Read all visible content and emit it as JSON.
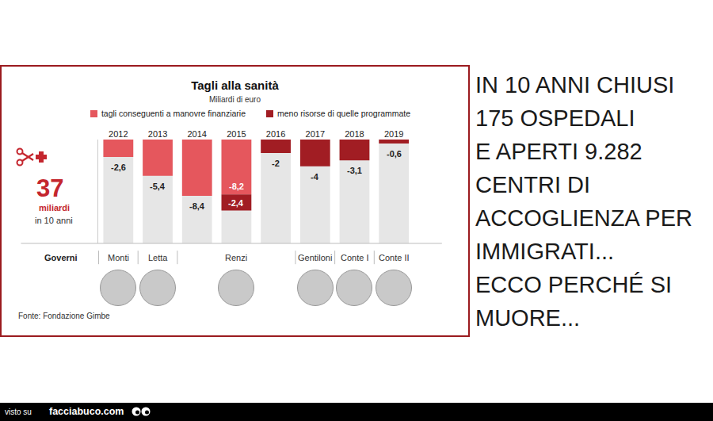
{
  "chart_data": {
    "type": "bar",
    "title": "Tagli alla sanità",
    "subtitle": "Miliardi di euro",
    "categories": [
      "2012",
      "2013",
      "2014",
      "2015",
      "2016",
      "2017",
      "2018",
      "2019"
    ],
    "series": [
      {
        "name": "tagli conseguenti a manovre finanziarie",
        "color": "#e5575d",
        "values": [
          -2.6,
          -5.4,
          -8.4,
          -8.2,
          null,
          null,
          null,
          null
        ],
        "value_labels": [
          "-2,6",
          "-5,4",
          "-8,4",
          "-8,2",
          null,
          null,
          null,
          null
        ]
      },
      {
        "name": "meno risorse di quelle programmate",
        "color": "#a11d23",
        "values": [
          null,
          null,
          null,
          -2.4,
          -2,
          -4,
          -3.1,
          -0.6
        ],
        "value_labels": [
          null,
          null,
          null,
          "-2,4",
          "-2",
          "-4",
          "-3,1",
          "-0,6"
        ]
      }
    ],
    "stacked": true,
    "data_labels": true,
    "legend": "top",
    "tick_labels": "x",
    "grid": true,
    "ylim": [
      -15.5,
      0
    ],
    "yticks": [
      0
    ],
    "governments_label": "Governi",
    "governments": [
      {
        "name": "Monti",
        "categories": [
          "2012"
        ]
      },
      {
        "name": "Letta",
        "categories": [
          "2013"
        ]
      },
      {
        "name": "Renzi",
        "categories": [
          "2014",
          "2015",
          "2016"
        ]
      },
      {
        "name": "Gentiloni",
        "categories": [
          "2017"
        ]
      },
      {
        "name": "Conte I",
        "categories": [
          "2018"
        ]
      },
      {
        "name": "Conte II",
        "categories": [
          "2019"
        ]
      }
    ],
    "total": {
      "value": 37,
      "unit": "miliardi",
      "note": "in 10 anni"
    },
    "source": "Fonte: Fondazione Gimbe"
  },
  "side_text": [
    "IN 10 ANNI CHIUSI",
    "175 OSPEDALI",
    "E APERTI 9.282",
    "CENTRI DI",
    "ACCOGLIENZA PER",
    "IMMIGRATI...",
    "ECCO PERCHÉ SI",
    "MUORE..."
  ],
  "footer": {
    "prefix": "visto su",
    "site": "facciabuco.com"
  }
}
